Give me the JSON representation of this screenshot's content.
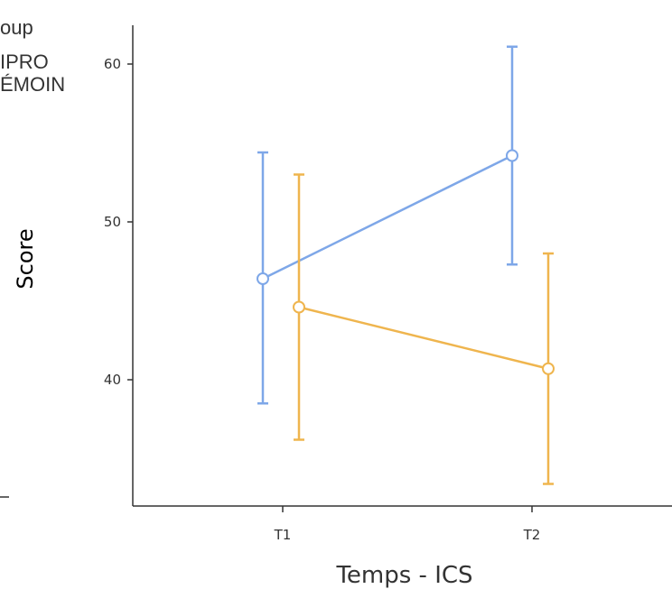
{
  "chart_data": {
    "type": "line",
    "title": "",
    "xlabel": "Temps - ICS",
    "ylabel": "Score",
    "categories": [
      "T1",
      "T2"
    ],
    "ylim": [
      32.2,
      62.6
    ],
    "yticks": [
      40,
      50,
      60
    ],
    "grid": false,
    "legend": {
      "title": "oup",
      "placement": "top-left",
      "entries": [
        "IPRO",
        "ÉMOIN"
      ]
    },
    "series": [
      {
        "name": "IPRO",
        "color": "#7ea7e8",
        "values": [
          46.4,
          54.2
        ],
        "lower": [
          38.5,
          47.3
        ],
        "upper": [
          54.4,
          61.1
        ]
      },
      {
        "name": "ÉMOIN",
        "color": "#efb54e",
        "values": [
          44.6,
          40.7
        ],
        "lower": [
          36.2,
          33.4
        ],
        "upper": [
          53.0,
          48.0
        ]
      }
    ]
  }
}
